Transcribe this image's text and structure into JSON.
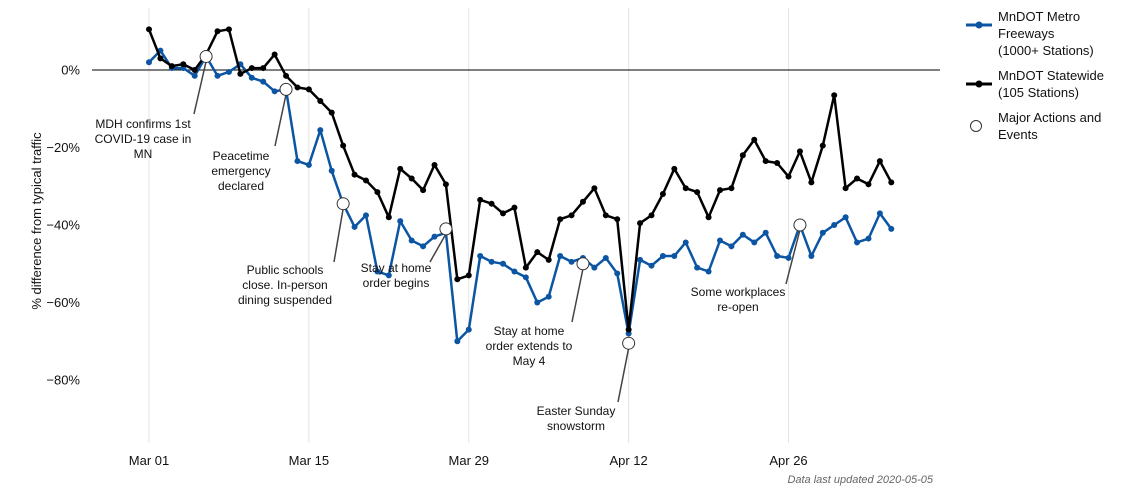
{
  "chart_data": {
    "type": "line",
    "ylabel": "% difference from typical traffic",
    "ylim": [
      -95,
      15
    ],
    "y_ticks": [
      {
        "value": 0,
        "label": "0%"
      },
      {
        "value": -20,
        "label": "−20%"
      },
      {
        "value": -40,
        "label": "−40%"
      },
      {
        "value": -60,
        "label": "−60%"
      },
      {
        "value": -80,
        "label": "−80%"
      }
    ],
    "x_ticks": [
      {
        "day": 0,
        "label": "Mar 01"
      },
      {
        "day": 14,
        "label": "Mar 15"
      },
      {
        "day": 28,
        "label": "Mar 29"
      },
      {
        "day": 42,
        "label": "Apr 12"
      },
      {
        "day": 56,
        "label": "Apr 26"
      }
    ],
    "grid": "vertical",
    "series": [
      {
        "name": "MnDOT Metro Freeways (1000+ Stations)",
        "color": "#0b55a3",
        "values": [
          2,
          5,
          0.5,
          0.5,
          -1.5,
          3.5,
          -1.5,
          -0.5,
          1.5,
          -2,
          -3,
          -5.5,
          -5,
          -23.5,
          -24.5,
          -15.5,
          -26,
          -34.5,
          -40.5,
          -37.5,
          -52,
          -53,
          -39,
          -44,
          -45.5,
          -43,
          -42,
          -70,
          -67,
          -48,
          -49.5,
          -50,
          -52,
          -53.5,
          -60,
          -58.5,
          -48,
          -49.5,
          -48.5,
          -51,
          -48.5,
          -52.5,
          -68,
          -49,
          -50.5,
          -48,
          -48,
          -44.5,
          -51,
          -52,
          -44,
          -45.5,
          -42.5,
          -44.5,
          -42,
          -48,
          -48.5,
          -40,
          -48,
          -42,
          -40,
          -38,
          -44.5,
          -43.5,
          -37,
          -41
        ]
      },
      {
        "name": "MnDOT Statewide (105 Stations)",
        "color": "#000000",
        "values": [
          10.5,
          3,
          1,
          1.5,
          0,
          4,
          10,
          10.5,
          -1,
          0.5,
          0.5,
          4,
          -1.5,
          -4.5,
          -5,
          -8,
          -11,
          -19.5,
          -27,
          -28.5,
          -31.5,
          -38,
          -25.5,
          -28,
          -31,
          -24.5,
          -29.5,
          -54,
          -53,
          -33.5,
          -34.5,
          -37,
          -35.5,
          -51,
          -47,
          -49,
          -38.5,
          -37.5,
          -34,
          -30.5,
          -37.5,
          -38.5,
          -67,
          -39.5,
          -37.5,
          -32,
          -25.5,
          -30.5,
          -31.5,
          -38,
          -31,
          -30.5,
          -22,
          -18,
          -23.5,
          -24,
          -27.5,
          -21,
          -29,
          -19.5,
          -6.5,
          -30.5,
          -28,
          -29.5,
          -23.5,
          -29
        ]
      }
    ],
    "events": [
      {
        "day": 5,
        "value": 3.5,
        "label": [
          "MDH confirms 1st",
          "COVID-19 case in",
          "MN"
        ]
      },
      {
        "day": 12,
        "value": -5,
        "label": [
          "Peacetime",
          "emergency",
          "declared"
        ]
      },
      {
        "day": 17,
        "value": -34.5,
        "label": [
          "Public schools",
          "close. In-person",
          "dining suspended"
        ]
      },
      {
        "day": 26,
        "value": -41,
        "label": [
          "Stay at home",
          "order begins"
        ]
      },
      {
        "day": 38,
        "value": -50,
        "label": [
          "Stay at home",
          "order extends to",
          "May 4"
        ]
      },
      {
        "day": 42,
        "value": -70.5,
        "label": [
          "Easter Sunday",
          "snowstorm"
        ]
      },
      {
        "day": 57,
        "value": -40,
        "label": [
          "Some workplaces",
          "re-open"
        ]
      }
    ],
    "legend": {
      "placement": "right",
      "items": [
        {
          "label": "MnDOT Metro\nFreeways\n(1000+ Stations)",
          "color": "#0b55a3",
          "marker": "line"
        },
        {
          "label": "MnDOT Statewide\n(105 Stations)",
          "color": "#000000",
          "marker": "line"
        },
        {
          "label": "Major Actions and\nEvents",
          "color": "#ffffff",
          "marker": "circle"
        }
      ]
    }
  },
  "footnote": "Data last updated 2020-05-05"
}
